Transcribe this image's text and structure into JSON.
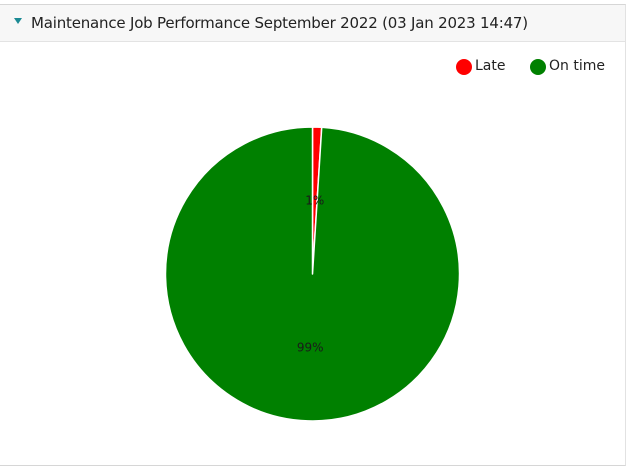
{
  "panel": {
    "title": "Maintenance Job Performance September 2022 (03 Jan 2023 14:47)",
    "collapse_icon": "triangle-down-icon",
    "accent_color": "#1b8a94"
  },
  "legend": {
    "placement": "top-right",
    "items": [
      {
        "label": "Late",
        "color": "#ff0000"
      },
      {
        "label": "On time",
        "color": "#008000"
      }
    ]
  },
  "chart_data": {
    "type": "pie",
    "title": "",
    "slices": [
      {
        "label": "Late",
        "value": 1,
        "display": "1%",
        "color": "#ff0000"
      },
      {
        "label": "On time",
        "value": 99,
        "display": "99%",
        "color": "#008000"
      }
    ]
  }
}
